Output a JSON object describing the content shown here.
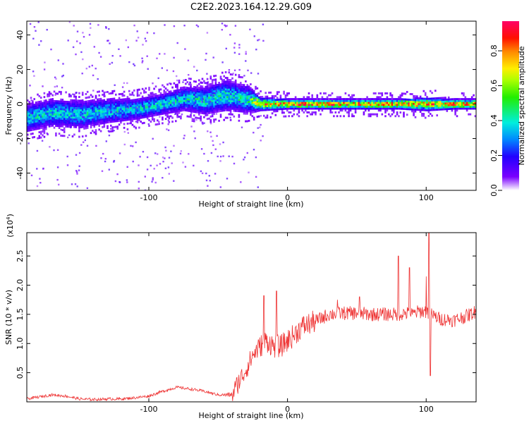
{
  "title": "C2E2.2023.164.12.29.G09",
  "chart_data": [
    {
      "type": "heatmap",
      "xlabel": "Height of straight line (km)",
      "ylabel": "Frequency (Hz)",
      "xlim": [
        -188,
        136
      ],
      "ylim": [
        -50,
        48
      ],
      "xticks": [
        -100,
        0,
        100
      ],
      "yticks": [
        -40,
        -20,
        0,
        20,
        40
      ],
      "colorbar": {
        "label": "Normalized spectral amplitude",
        "range": [
          0.0,
          0.97
        ],
        "ticks": [
          0.0,
          0.2,
          0.4,
          0.6,
          0.8
        ]
      },
      "ridge": {
        "heights": [
          -188,
          -170,
          -150,
          -130,
          -110,
          -90,
          -75,
          -60,
          -45,
          -30,
          -20,
          0,
          20,
          40,
          60,
          80,
          100,
          120,
          136
        ],
        "center_freq": [
          -8,
          -5,
          -6,
          -4,
          -3,
          0,
          3,
          2,
          5,
          3,
          0,
          0,
          0,
          0,
          0,
          0,
          0,
          0,
          0
        ],
        "half_width": [
          9,
          9,
          9,
          8,
          7,
          7,
          8,
          9,
          10,
          9,
          4,
          3,
          3,
          3,
          3,
          3,
          4,
          3,
          3
        ],
        "peak_amplitude": [
          0.45,
          0.45,
          0.45,
          0.45,
          0.45,
          0.45,
          0.45,
          0.48,
          0.48,
          0.48,
          0.9,
          0.95,
          0.95,
          0.95,
          0.95,
          0.95,
          0.9,
          0.95,
          0.95
        ]
      }
    },
    {
      "type": "line",
      "xlabel": "Height of straight line (km)",
      "ylabel": "SNR (10 * v/v)",
      "scale_note": "(x10",
      "scale_exponent": "4",
      "scale_close": ")",
      "xlim": [
        -188,
        136
      ],
      "ylim": [
        0,
        2.9
      ],
      "xticks": [
        -100,
        0,
        100
      ],
      "yticks": [
        0.5,
        1.0,
        1.5,
        2.0,
        2.5
      ],
      "ytick_labels": [
        "0.5",
        "1.0",
        "1.5",
        "2.0",
        "2.5"
      ],
      "color": "#ee3333",
      "series": [
        {
          "name": "SNR",
          "x": [
            -188,
            -170,
            -160,
            -150,
            -140,
            -130,
            -120,
            -110,
            -100,
            -90,
            -80,
            -70,
            -60,
            -50,
            -40,
            -35,
            -30,
            -25,
            -20,
            -15,
            -10,
            -5,
            0,
            5,
            10,
            20,
            30,
            40,
            50,
            60,
            70,
            80,
            85,
            90,
            95,
            100,
            105,
            110,
            120,
            130,
            136
          ],
          "y": [
            0.05,
            0.12,
            0.1,
            0.05,
            0.04,
            0.05,
            0.05,
            0.07,
            0.1,
            0.18,
            0.25,
            0.22,
            0.18,
            0.12,
            0.12,
            0.35,
            0.55,
            0.8,
            0.95,
            1.05,
            0.95,
            0.95,
            1.05,
            1.15,
            1.28,
            1.38,
            1.5,
            1.52,
            1.52,
            1.5,
            1.5,
            1.5,
            1.52,
            1.5,
            1.55,
            1.55,
            1.48,
            1.42,
            1.4,
            1.48,
            1.55
          ]
        }
      ],
      "spikes": [
        {
          "x": -17,
          "y": 1.82
        },
        {
          "x": -8,
          "y": 1.9
        },
        {
          "x": 36,
          "y": 1.75
        },
        {
          "x": 52,
          "y": 1.8
        },
        {
          "x": 80,
          "y": 2.5
        },
        {
          "x": 88,
          "y": 2.3
        },
        {
          "x": 100,
          "y": 2.15
        },
        {
          "x": 102,
          "y": 2.9
        },
        {
          "x": 103,
          "y": 0.45
        }
      ]
    }
  ]
}
